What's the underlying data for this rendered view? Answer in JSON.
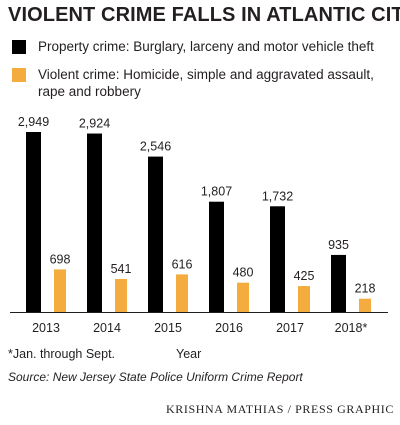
{
  "colors": {
    "property": "#000000",
    "violent": "#f5ac3f",
    "text": "#231f20",
    "baseline": "#231f20"
  },
  "chart_data": {
    "type": "bar",
    "title": "VIOLENT CRIME FALLS IN ATLANTIC CITY",
    "xlabel": "Year",
    "ylabel": "",
    "categories": [
      "2013",
      "2014",
      "2015",
      "2016",
      "2017",
      "2018*"
    ],
    "series": [
      {
        "name": "Property crime: Burglary, larceny and motor vehicle theft",
        "values": [
          2949,
          2924,
          2546,
          1807,
          1732,
          935
        ],
        "labels": [
          "2,949",
          "2,924",
          "2,546",
          "1,807",
          "1,732",
          "935"
        ],
        "color": "#000000"
      },
      {
        "name": "Violent crime: Homicide, simple and aggravated assault, rape and robbery",
        "values": [
          698,
          541,
          616,
          480,
          425,
          218
        ],
        "labels": [
          "698",
          "541",
          "616",
          "480",
          "425",
          "218"
        ],
        "color": "#f5ac3f"
      }
    ],
    "ylim": [
      0,
      2949
    ],
    "grid": false,
    "legend_position": "top"
  },
  "footnote": "*Jan. through Sept.",
  "source": "Source:  New Jersey State Police Uniform Crime Report",
  "credit": "KRISHNA MATHIAS / PRESS GRAPHIC"
}
